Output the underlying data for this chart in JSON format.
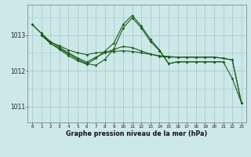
{
  "title": "Graphe pression niveau de la mer (hPa)",
  "bg_color": "#cde8e8",
  "grid_color": "#aacccc",
  "line_color": "#1a5c1a",
  "xlim": [
    -0.5,
    23.5
  ],
  "ylim": [
    1010.55,
    1013.85
  ],
  "yticks": [
    1011,
    1012,
    1013
  ],
  "xticks": [
    0,
    1,
    2,
    3,
    4,
    5,
    6,
    7,
    8,
    9,
    10,
    11,
    12,
    13,
    14,
    15,
    16,
    17,
    18,
    19,
    20,
    21,
    22,
    23
  ],
  "line1_x": [
    0,
    1,
    2,
    3,
    4,
    5,
    6,
    7,
    8,
    9,
    10,
    11,
    12,
    13,
    14,
    15,
    16,
    17,
    18,
    19,
    20,
    21,
    22,
    23
  ],
  "line1_y": [
    1013.3,
    1013.05,
    1012.8,
    1012.7,
    1012.58,
    1012.5,
    1012.45,
    1012.5,
    1012.52,
    1012.54,
    1012.56,
    1012.54,
    1012.5,
    1012.46,
    1012.42,
    1012.4,
    1012.38,
    1012.38,
    1012.38,
    1012.38,
    1012.38,
    1012.35,
    1012.3,
    1011.1
  ],
  "line2_x": [
    1,
    2,
    3,
    4,
    5,
    6,
    7,
    8,
    9,
    10,
    11,
    12,
    13,
    14,
    15,
    16,
    17,
    18,
    19,
    20,
    21
  ],
  "line2_y": [
    1013.0,
    1012.77,
    1012.6,
    1012.42,
    1012.28,
    1012.18,
    1012.35,
    1012.55,
    1012.78,
    1013.3,
    1013.55,
    1013.25,
    1012.88,
    1012.58,
    1012.2,
    1012.25,
    1012.25,
    1012.25,
    1012.25,
    1012.25,
    1012.25
  ],
  "line3_x": [
    1,
    2,
    3,
    4,
    5,
    6,
    7,
    8,
    9,
    10,
    11,
    12,
    13,
    14,
    15,
    16,
    17,
    18,
    19,
    20,
    21,
    22,
    23
  ],
  "line3_y": [
    1013.0,
    1012.77,
    1012.62,
    1012.47,
    1012.32,
    1012.2,
    1012.15,
    1012.32,
    1012.62,
    1013.2,
    1013.48,
    1013.2,
    1012.82,
    1012.56,
    1012.2,
    1012.25,
    1012.25,
    1012.25,
    1012.25,
    1012.25,
    1012.25,
    1011.78,
    1011.1
  ],
  "line4_x": [
    0,
    1,
    2,
    3,
    4,
    5,
    6,
    7,
    8,
    9,
    10,
    11,
    12,
    13,
    14,
    15,
    16,
    17,
    18,
    19,
    20,
    21,
    22,
    23
  ],
  "line4_y": [
    1013.3,
    1013.05,
    1012.82,
    1012.66,
    1012.5,
    1012.36,
    1012.24,
    1012.38,
    1012.5,
    1012.6,
    1012.68,
    1012.65,
    1012.55,
    1012.47,
    1012.4,
    1012.38,
    1012.38,
    1012.38,
    1012.38,
    1012.38,
    1012.38,
    1012.35,
    1012.3,
    1011.1
  ]
}
